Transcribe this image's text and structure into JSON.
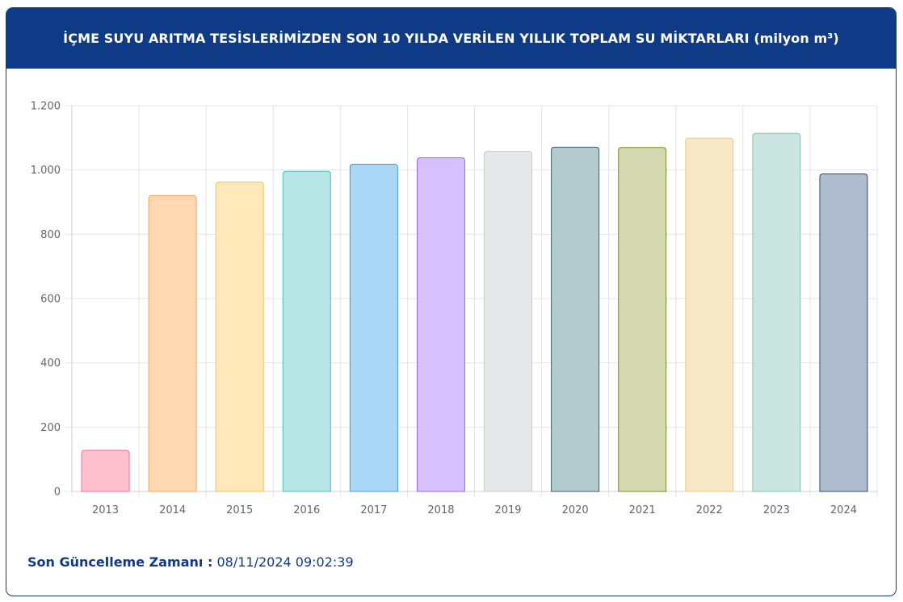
{
  "header": {
    "title": "İÇME SUYU ARITMA TESİSLERİMİZDEN SON 10 YILDA VERİLEN YILLIK TOPLAM SU MİKTARLARI (milyon m³)"
  },
  "footer": {
    "label": "Son Güncelleme Zamanı :",
    "value": "08/11/2024 09:02:39"
  },
  "chart_data": {
    "type": "bar",
    "title": "İÇME SUYU ARITMA TESİSLERİMİZDEN SON 10 YILDA VERİLEN YILLIK TOPLAM SU MİKTARLARI (milyon m³)",
    "categories": [
      "2013",
      "2014",
      "2015",
      "2016",
      "2017",
      "2018",
      "2019",
      "2020",
      "2021",
      "2022",
      "2023",
      "2024"
    ],
    "values": [
      128,
      920,
      962,
      996,
      1018,
      1038,
      1058,
      1071,
      1070,
      1099,
      1114,
      988
    ],
    "ylim": [
      0,
      1200
    ],
    "yticks": [
      0,
      200,
      400,
      600,
      800,
      1000,
      1200
    ],
    "ytick_labels": [
      "0",
      "200",
      "400",
      "600",
      "800",
      "1.000",
      "1.200"
    ],
    "grid": true,
    "bar_fill_colors": [
      "#ffc0cd",
      "#ffd8b4",
      "#ffe9bb",
      "#b6e6e6",
      "#abd7f7",
      "#d4c1fe",
      "#e7e8ea",
      "#b3cbcf",
      "#d3d8b1",
      "#f7e8c6",
      "#cae5e0",
      "#b0bdcf"
    ],
    "bar_edge_colors": [
      "#f0718f",
      "#f5a25b",
      "#f2c14f",
      "#4bbfbf",
      "#3c9ee3",
      "#9866f0",
      "#c8c9cc",
      "#36606a",
      "#7d8c2a",
      "#ecc97a",
      "#84c4b4",
      "#2d4a78"
    ]
  }
}
